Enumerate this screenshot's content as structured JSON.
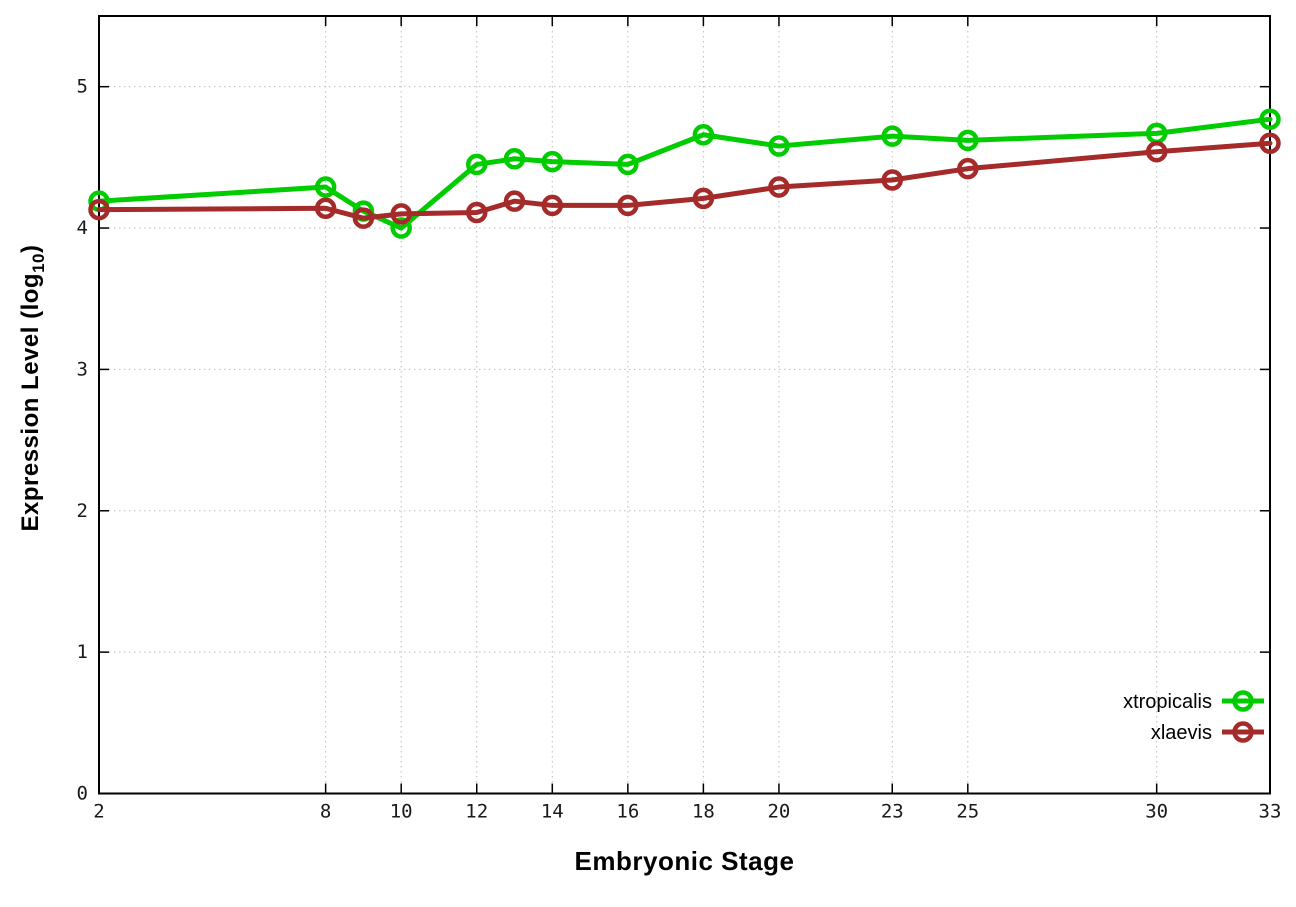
{
  "chart_data": {
    "type": "line",
    "title": "",
    "xlabel": "Embryonic Stage",
    "ylabel": "Expression Level (log10)",
    "ylabel_parts": {
      "prefix": "Expression Level (log",
      "sub": "10",
      "suffix": ")"
    },
    "x": [
      2,
      8,
      9,
      10,
      12,
      13,
      14,
      16,
      18,
      20,
      23,
      25,
      30,
      33
    ],
    "xticks": [
      2,
      8,
      10,
      12,
      14,
      16,
      18,
      20,
      23,
      25,
      30,
      33
    ],
    "yticks": [
      0,
      1,
      2,
      3,
      4,
      5
    ],
    "xlim": [
      2,
      33
    ],
    "ylim": [
      0,
      5.5
    ],
    "grid": true,
    "legend_position": "inside-right",
    "series": [
      {
        "name": "xtropicalis",
        "color": "#00cc00",
        "values": [
          4.19,
          4.29,
          4.12,
          4.0,
          4.45,
          4.49,
          4.47,
          4.45,
          4.66,
          4.58,
          4.65,
          4.62,
          4.67,
          4.77
        ]
      },
      {
        "name": "xlaevis",
        "color": "#a52a2a",
        "values": [
          4.13,
          4.14,
          4.07,
          4.1,
          4.11,
          4.19,
          4.16,
          4.16,
          4.21,
          4.29,
          4.34,
          4.42,
          4.54,
          4.6
        ]
      }
    ],
    "style": {
      "grid_color": "#bdbdbd",
      "axis_color": "#000000",
      "tick_label_color": "#1a1a1a",
      "background": "#ffffff"
    }
  }
}
